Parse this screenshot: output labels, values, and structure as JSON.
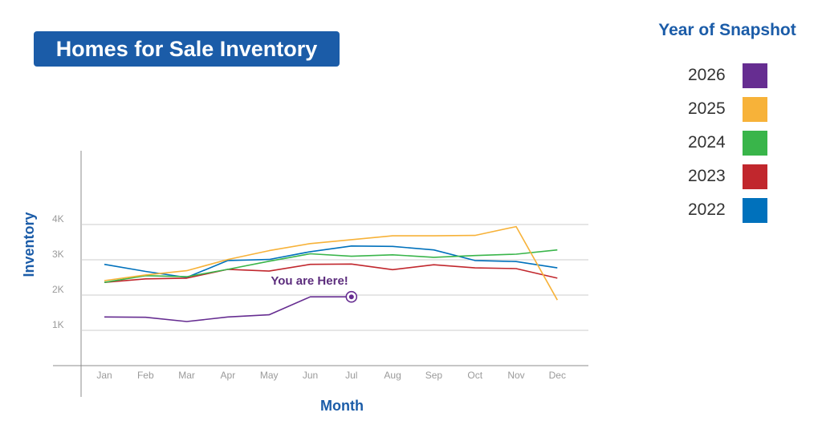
{
  "chart_data": {
    "type": "line",
    "title": "Homes for Sale Inventory",
    "xlabel": "Month",
    "ylabel": "Inventory",
    "categories": [
      "Jan",
      "Feb",
      "Mar",
      "Apr",
      "May",
      "Jun",
      "Jul",
      "Aug",
      "Sep",
      "Oct",
      "Nov",
      "Dec"
    ],
    "y_ticks": [
      1000,
      2000,
      3000,
      4000
    ],
    "y_tick_labels": [
      "1K",
      "2K",
      "3K",
      "4K"
    ],
    "ylim": [
      0,
      6000
    ],
    "grid": true,
    "legend_title": "Year of Snapshot",
    "legend_position": "right",
    "series": [
      {
        "name": "2026",
        "color": "#662d91",
        "values": [
          1380,
          1370,
          1250,
          1380,
          1440,
          1950,
          1950,
          null,
          null,
          null,
          null,
          null
        ]
      },
      {
        "name": "2025",
        "color": "#f7b239",
        "values": [
          2410,
          2570,
          2690,
          3010,
          3260,
          3460,
          3570,
          3680,
          3680,
          3690,
          3940,
          1860
        ]
      },
      {
        "name": "2024",
        "color": "#39b54a",
        "values": [
          2360,
          2550,
          2520,
          2730,
          2960,
          3170,
          3100,
          3140,
          3070,
          3120,
          3160,
          3280
        ]
      },
      {
        "name": "2023",
        "color": "#c1272d",
        "values": [
          2360,
          2460,
          2480,
          2730,
          2680,
          2870,
          2880,
          2720,
          2860,
          2770,
          2750,
          2480
        ]
      },
      {
        "name": "2022",
        "color": "#0071bc",
        "values": [
          2870,
          2670,
          2500,
          2980,
          3010,
          3230,
          3390,
          3380,
          3280,
          2980,
          2950,
          2770
        ]
      }
    ],
    "annotation": {
      "text": "You are Here!",
      "series": "2026",
      "category": "Jul"
    }
  }
}
